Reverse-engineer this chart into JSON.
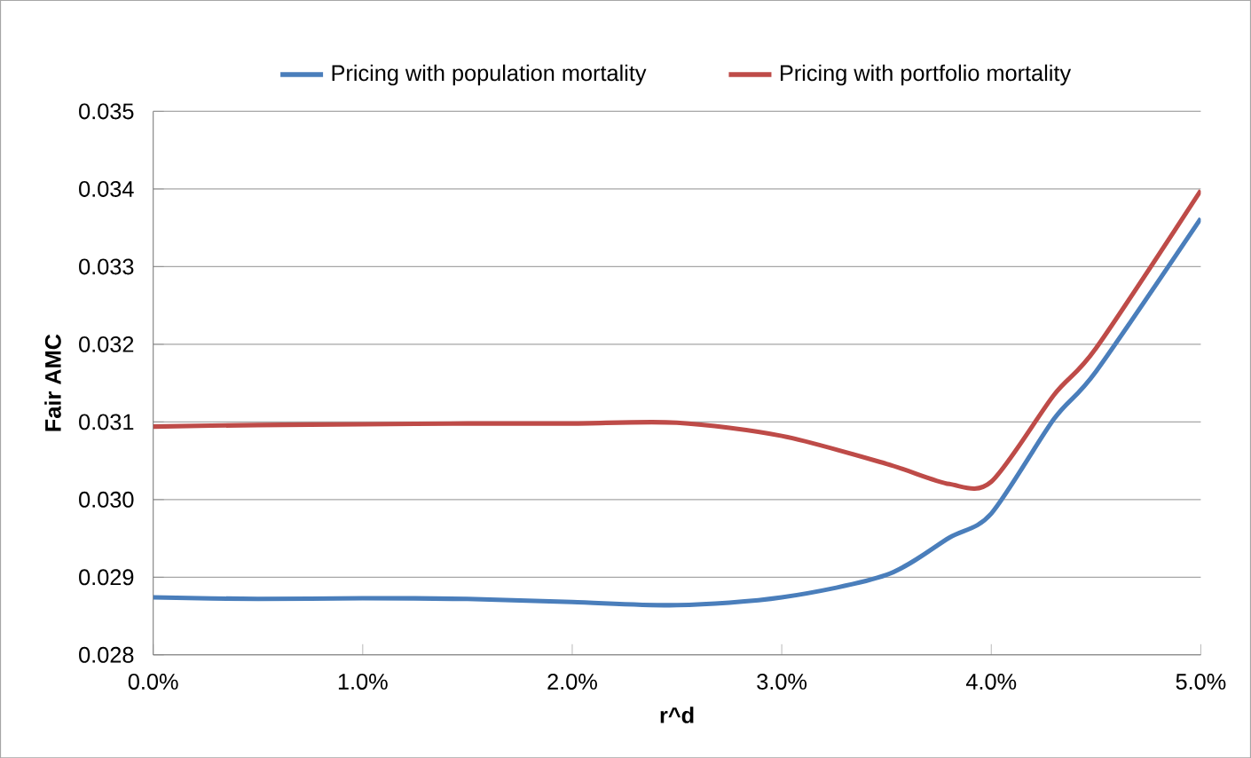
{
  "chart_data": {
    "type": "line",
    "xlabel": "r^d",
    "ylabel": "Fair AMC",
    "x": [
      0,
      0.005,
      0.01,
      0.015,
      0.02,
      0.025,
      0.03,
      0.035,
      0.038,
      0.04,
      0.043,
      0.045,
      0.05
    ],
    "series": [
      {
        "name": "Pricing with population mortality",
        "color": "#4a7ebb",
        "values": [
          0.02874,
          0.02872,
          0.02873,
          0.02872,
          0.02868,
          0.02864,
          0.02874,
          0.02903,
          0.02951,
          0.02982,
          0.03104,
          0.03165,
          0.03362
        ]
      },
      {
        "name": "Pricing with portfolio mortality",
        "color": "#be4b48",
        "values": [
          0.03094,
          0.03096,
          0.03097,
          0.03098,
          0.03098,
          0.03099,
          0.03082,
          0.03046,
          0.0302,
          0.03023,
          0.03135,
          0.03195,
          0.03398
        ]
      }
    ],
    "xlim": [
      0,
      0.05
    ],
    "ylim": [
      0.028,
      0.035
    ],
    "xticks": [
      {
        "value": 0,
        "label": "0.0%"
      },
      {
        "value": 0.01,
        "label": "1.0%"
      },
      {
        "value": 0.02,
        "label": "2.0%"
      },
      {
        "value": 0.03,
        "label": "3.0%"
      },
      {
        "value": 0.04,
        "label": "4.0%"
      },
      {
        "value": 0.05,
        "label": "5.0%"
      }
    ],
    "yticks": [
      0.028,
      0.029,
      {
        "value": 0.03,
        "label": "0.030"
      },
      0.031,
      0.032,
      0.033,
      0.034,
      0.035
    ],
    "grid": "y",
    "legend": "top",
    "marker": "none",
    "line_style": "solid"
  }
}
